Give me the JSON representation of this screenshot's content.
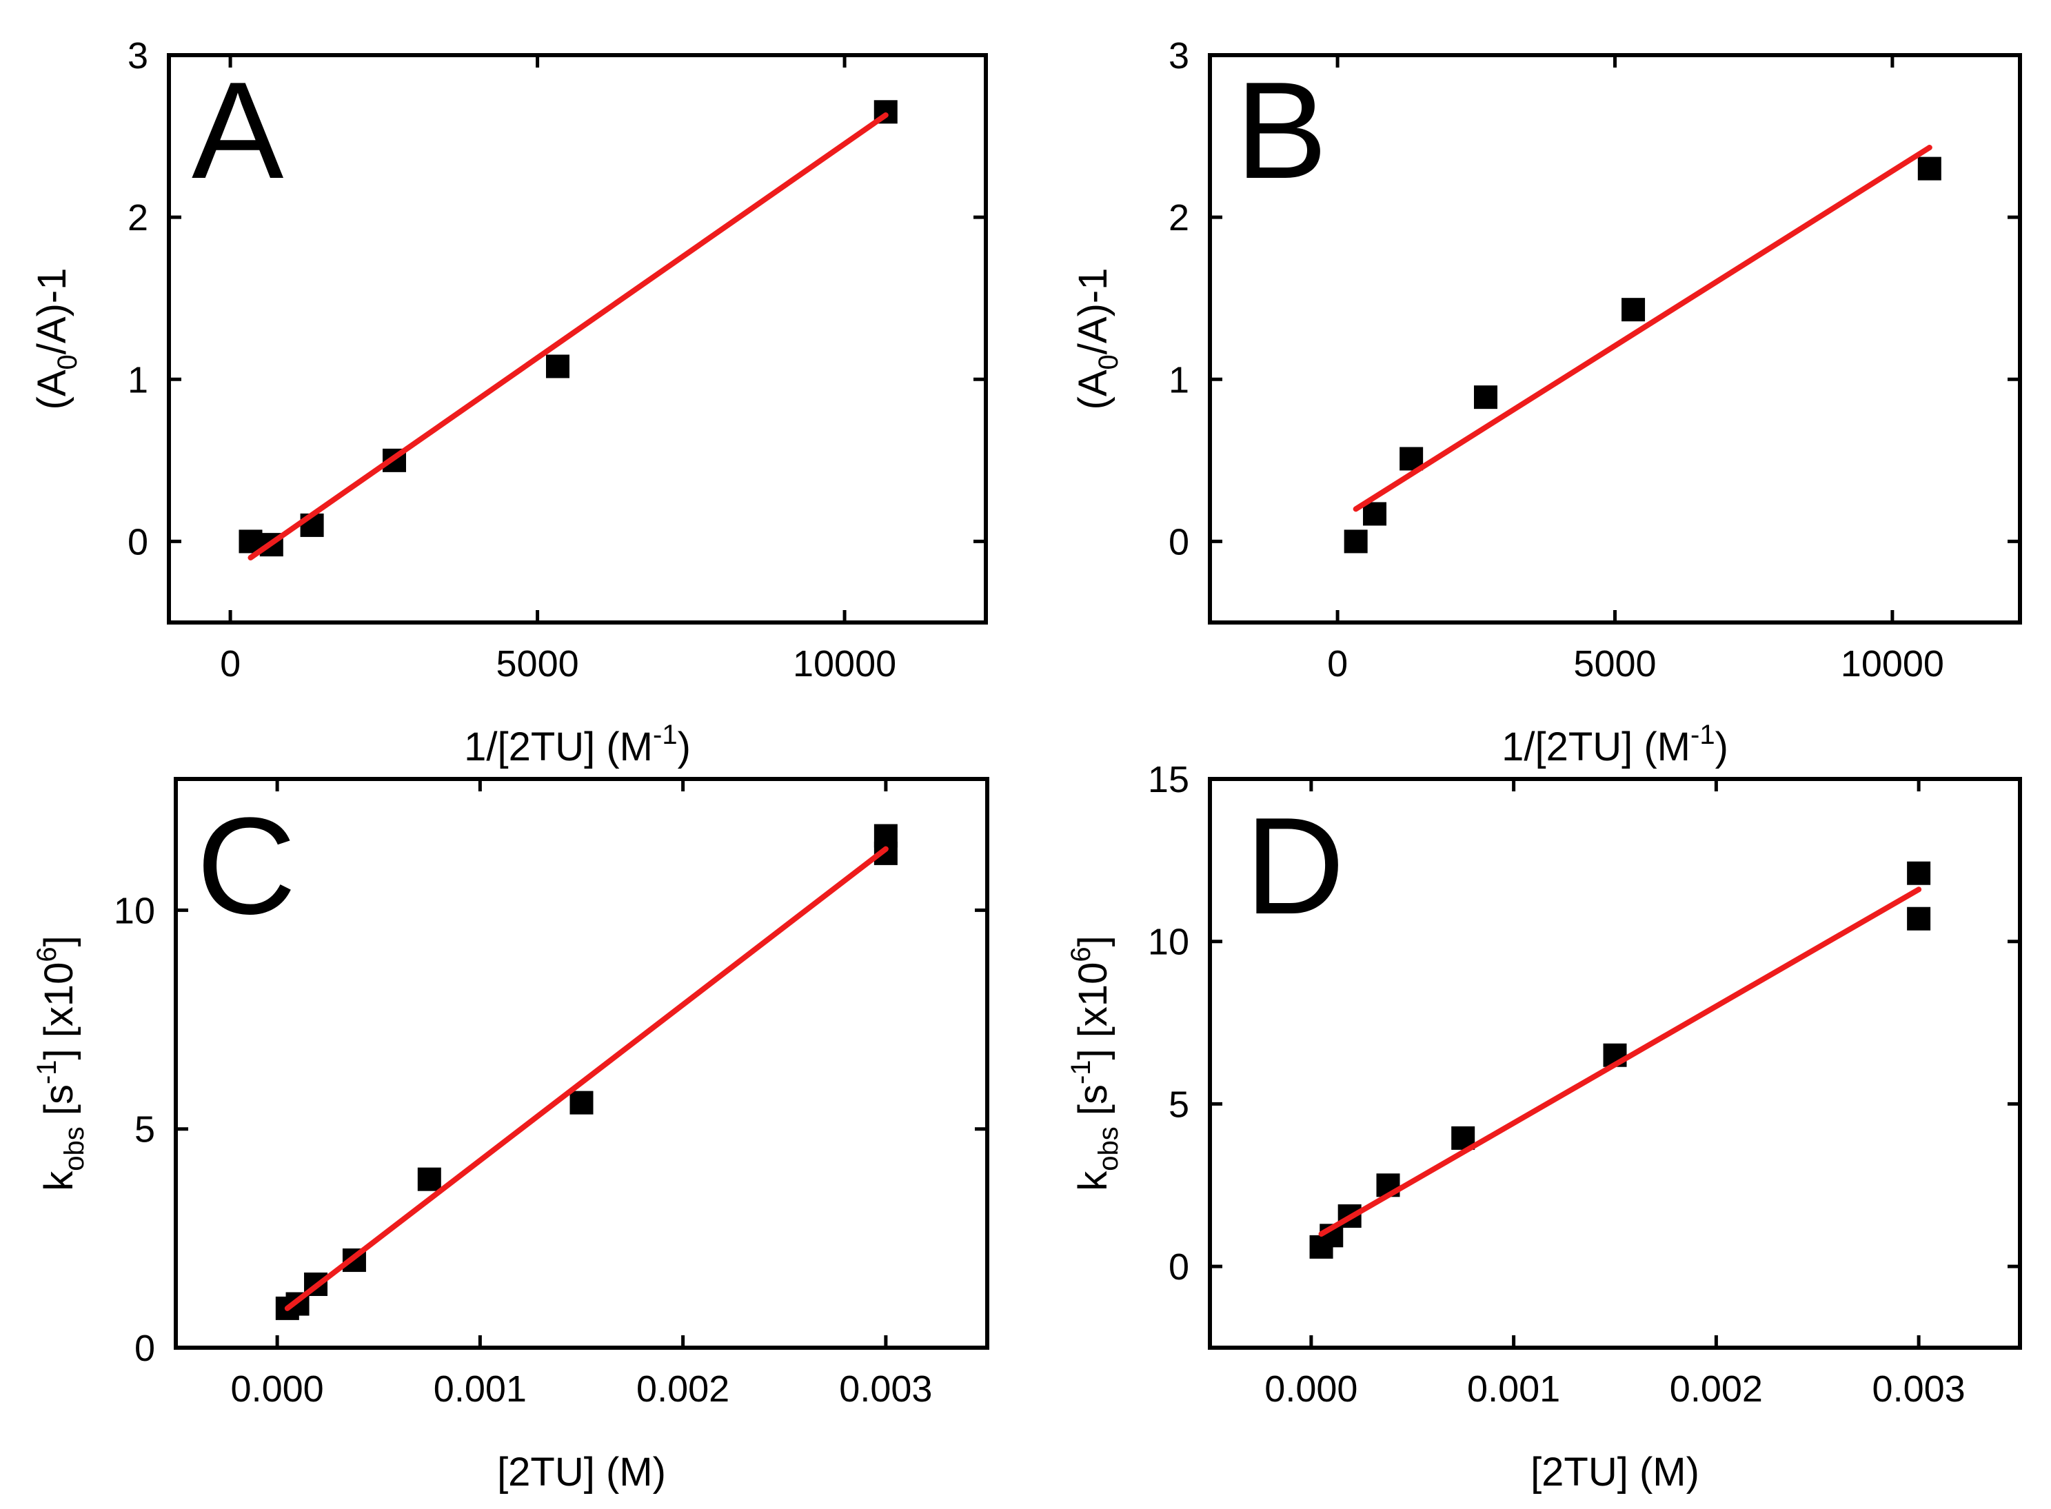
{
  "chart_data": [
    {
      "type": "scatter",
      "panel_label": "A",
      "title": "",
      "xlabel": "1/[2TU] (M",
      "xlabel_sup": "-1",
      "xlabel_end": ")",
      "ylabel": "(A",
      "ylabel_sub": "0",
      "ylabel_end": "/A)-1",
      "xlim": [
        -1000,
        12300
      ],
      "ylim": [
        -0.5,
        3
      ],
      "xticks": [
        0,
        5000,
        10000
      ],
      "xtick_labels": [
        "0",
        "5000",
        "10000"
      ],
      "yticks": [
        0,
        1,
        2,
        3
      ],
      "ytick_labels": [
        "0",
        "1",
        "2",
        "3"
      ],
      "points": {
        "x": [
          330,
          670,
          1330,
          2670,
          5330,
          10670
        ],
        "y": [
          0.0,
          -0.02,
          0.1,
          0.5,
          1.08,
          2.65
        ]
      },
      "fit": {
        "x": [
          330,
          10670
        ],
        "y": [
          -0.1,
          2.63
        ]
      },
      "marker_color": "#000000",
      "fit_color": "#ee1c1c"
    },
    {
      "type": "scatter",
      "panel_label": "B",
      "title": "",
      "xlabel": "1/[2TU] (M",
      "xlabel_sup": "-1",
      "xlabel_end": ")",
      "ylabel": "(A",
      "ylabel_sub": "0",
      "ylabel_end": "/A)-1",
      "xlim": [
        -2300,
        12300
      ],
      "ylim": [
        -0.5,
        3
      ],
      "xticks": [
        0,
        5000,
        10000
      ],
      "xtick_labels": [
        "0",
        "5000",
        "10000"
      ],
      "yticks": [
        0,
        1,
        2,
        3
      ],
      "ytick_labels": [
        "0",
        "1",
        "2",
        "3"
      ],
      "points": {
        "x": [
          330,
          670,
          1330,
          2670,
          5330,
          10670
        ],
        "y": [
          0.0,
          0.17,
          0.51,
          0.89,
          1.43,
          2.3
        ]
      },
      "fit": {
        "x": [
          330,
          10670
        ],
        "y": [
          0.2,
          2.43
        ]
      },
      "marker_color": "#000000",
      "fit_color": "#ee1c1c"
    },
    {
      "type": "scatter",
      "panel_label": "C",
      "title": "",
      "xlabel": "[2TU] (M)",
      "ylabel": "k",
      "ylabel_sub": "obs",
      "ylabel_mid": " [s",
      "ylabel_sup": "-1",
      "ylabel_end": "] [x10",
      "ylabel_sup2": "6",
      "ylabel_close": "]",
      "xlim": [
        -0.0005,
        0.0035
      ],
      "ylim": [
        0,
        13
      ],
      "xticks": [
        0.0,
        0.001,
        0.002,
        0.003
      ],
      "xtick_labels": [
        "0.000",
        "0.001",
        "0.002",
        "0.003"
      ],
      "yticks": [
        0,
        5,
        10
      ],
      "ytick_labels": [
        "0",
        "5",
        "10"
      ],
      "points": {
        "x": [
          5e-05,
          0.0001,
          0.00019,
          0.00038,
          0.00075,
          0.0015,
          0.003,
          0.003
        ],
        "y": [
          0.9,
          1.0,
          1.45,
          2.0,
          3.85,
          5.6,
          11.3,
          11.7
        ]
      },
      "fit": {
        "x": [
          5e-05,
          0.003
        ],
        "y": [
          0.9,
          11.4
        ]
      },
      "marker_color": "#000000",
      "fit_color": "#ee1c1c"
    },
    {
      "type": "scatter",
      "panel_label": "D",
      "title": "",
      "xlabel": "[2TU] (M)",
      "ylabel": "k",
      "ylabel_sub": "obs",
      "ylabel_mid": " [s",
      "ylabel_sup": "-1",
      "ylabel_end": "] [x10",
      "ylabel_sup2": "6",
      "ylabel_close": "]",
      "xlim": [
        -0.0005,
        0.0035
      ],
      "ylim": [
        -2.5,
        15
      ],
      "xticks": [
        0.0,
        0.001,
        0.002,
        0.003
      ],
      "xtick_labels": [
        "0.000",
        "0.001",
        "0.002",
        "0.003"
      ],
      "yticks": [
        0,
        5,
        10,
        15
      ],
      "ytick_labels": [
        "0",
        "5",
        "10",
        "15"
      ],
      "points": {
        "x": [
          5e-05,
          0.0001,
          0.00019,
          0.00038,
          0.00075,
          0.0015,
          0.003,
          0.003
        ],
        "y": [
          0.6,
          0.95,
          1.55,
          2.5,
          3.95,
          6.5,
          10.7,
          12.1
        ]
      },
      "fit": {
        "x": [
          5e-05,
          0.003
        ],
        "y": [
          1.0,
          11.6
        ]
      },
      "marker_color": "#000000",
      "fit_color": "#ee1c1c"
    }
  ]
}
